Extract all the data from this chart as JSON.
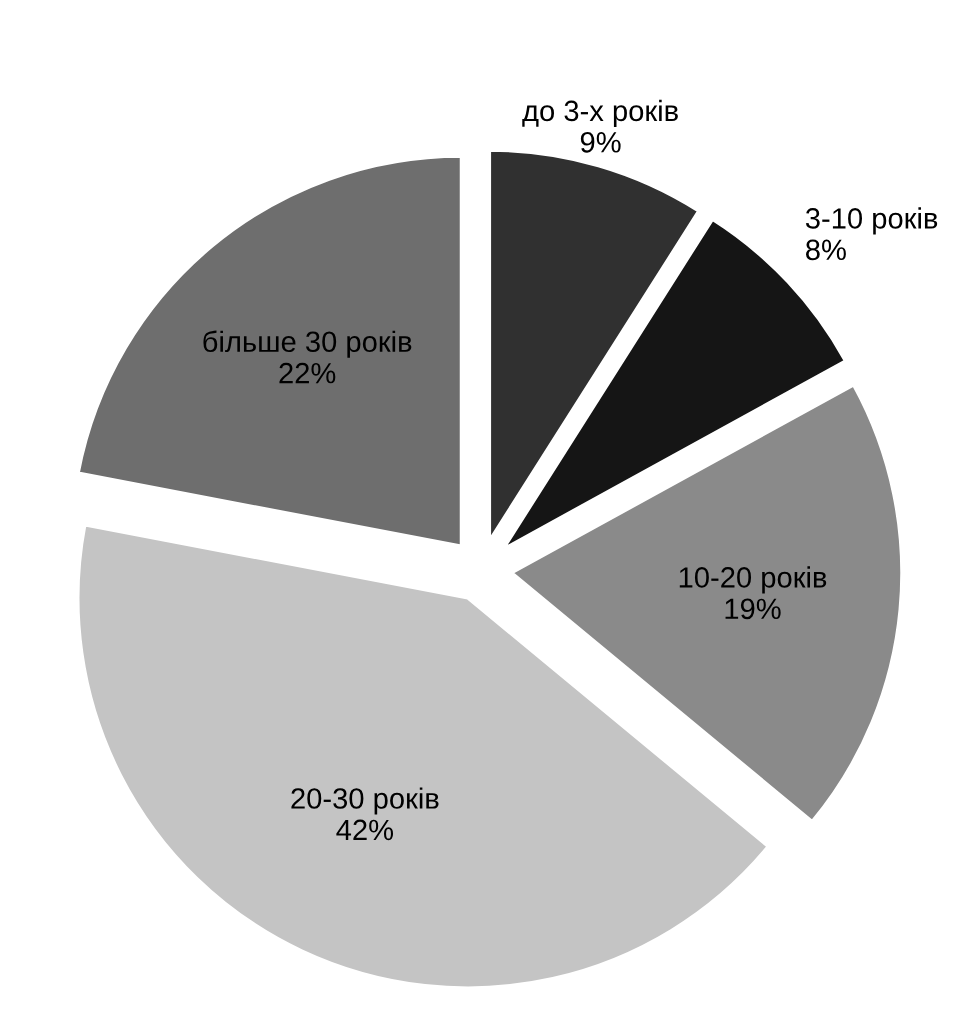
{
  "chart_data": {
    "type": "pie",
    "categories": [
      "до 3-х років",
      "3-10 років",
      "10-20 років",
      "20-30 років",
      "більше 30 років"
    ],
    "values": [
      9,
      8,
      19,
      42,
      22
    ],
    "value_labels": [
      "9%",
      "8%",
      "19%",
      "42%",
      "22%"
    ],
    "colors": [
      "#303030",
      "#151515",
      "#8a8a8a",
      "#c4c4c4",
      "#6e6e6e"
    ]
  }
}
